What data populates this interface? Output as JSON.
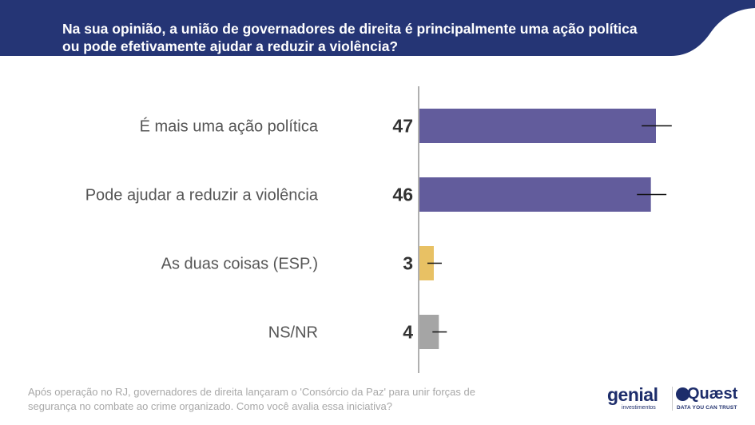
{
  "header": {
    "question": "Na sua opinião, a união de governadores de direita é principalmente uma ação política ou pode efetivamente ajudar a reduzir a violência?"
  },
  "chart_data": {
    "type": "bar",
    "orientation": "horizontal",
    "categories": [
      "É mais uma ação política",
      "Pode ajudar a reduzir a violência",
      "As duas coisas (ESP.)",
      "NS/NR"
    ],
    "values": [
      47,
      46,
      3,
      4
    ],
    "bar_colors": [
      "#625c9c",
      "#625c9c",
      "#e8c164",
      "#a5a5a5"
    ],
    "error_bars": true,
    "xlim": [
      0,
      50
    ]
  },
  "footnote": "Após operação no RJ, governadores de direita lançaram o 'Consórcio da Paz' para unir forças de segurança no combate ao crime organizado. Como você avalia essa iniciativa?",
  "logos": {
    "genial_word": "genial",
    "genial_sub": "investimentos",
    "quaest_word": "Quæst",
    "quaest_sub": "DATA YOU CAN TRUST"
  },
  "colors": {
    "header_bg": "#253575",
    "label_text": "#555555",
    "value_text": "#333333",
    "axis": "#b0b0b0",
    "footnote": "#a8a8a8",
    "brand": "#1d2d6b"
  }
}
